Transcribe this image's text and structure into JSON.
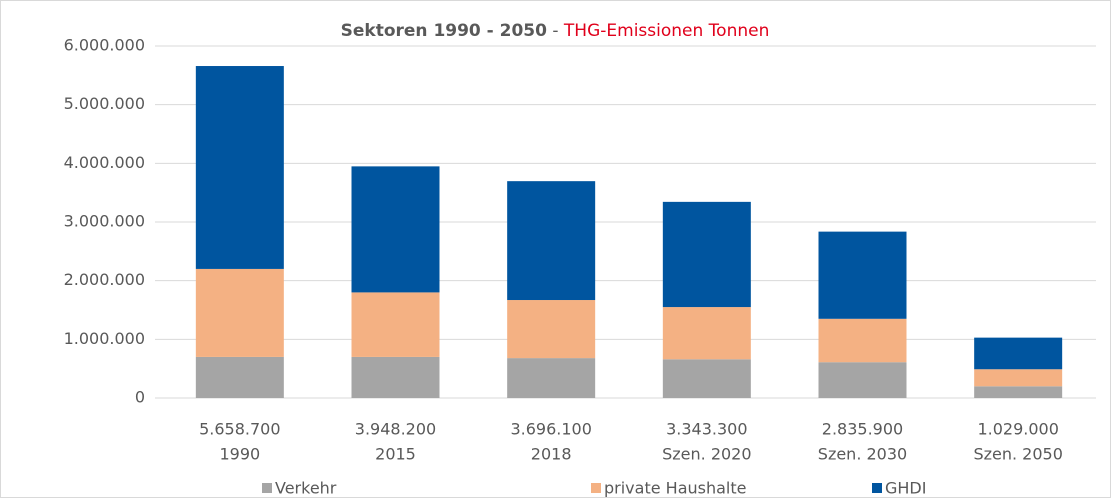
{
  "chart_data": {
    "type": "stacked_bar",
    "title": [
      "Sektoren 1990 - 2050",
      " - ",
      "THG-Emissionen Tonnen"
    ],
    "categories": [
      [
        "5.658.700",
        "1990"
      ],
      [
        "3.948.200",
        "2015"
      ],
      [
        "3.696.100",
        "2018"
      ],
      [
        "3.343.300",
        "Szen. 2020"
      ],
      [
        "2.835.900",
        "Szen. 2030"
      ],
      [
        "1.029.000",
        "Szen. 2050"
      ]
    ],
    "series": [
      {
        "name": "Verkehr",
        "color": "#a5a5a5",
        "values": [
          700000,
          700000,
          680000,
          660000,
          610000,
          200000
        ]
      },
      {
        "name": "private Haushalte",
        "color": "#f4b183",
        "values": [
          1500000,
          1100000,
          990000,
          890000,
          740000,
          290000
        ]
      },
      {
        "name": "GHDI",
        "color": "#00559f",
        "values": [
          3458700,
          2148200,
          2026100,
          1793300,
          1485900,
          539000
        ]
      }
    ],
    "ylim": [
      0,
      6000000
    ],
    "yticks": [
      0,
      {
        "value": 1000000,
        "label": "1.000.000"
      },
      {
        "value": 2000000,
        "label": "2.000.000"
      },
      {
        "value": 3000000,
        "label": "3.000.000"
      },
      {
        "value": 4000000,
        "label": "4.000.000"
      },
      {
        "value": 5000000,
        "label": "5.000.000"
      },
      {
        "value": 6000000,
        "label": "6.000.000"
      }
    ],
    "grid": true,
    "legend": "bottom"
  }
}
